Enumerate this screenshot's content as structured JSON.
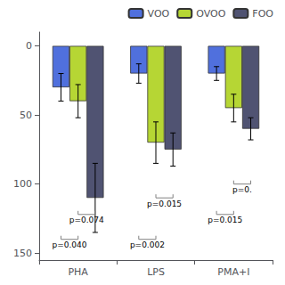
{
  "chart_data": {
    "type": "bar",
    "categories": [
      "PHA",
      "LPS",
      "PMA+I"
    ],
    "series": [
      {
        "name": "VOO",
        "values": [
          30,
          20,
          20
        ],
        "errors": [
          10,
          7,
          5
        ]
      },
      {
        "name": "OVOO",
        "values": [
          40,
          70,
          45
        ],
        "errors": [
          12,
          15,
          10
        ]
      },
      {
        "name": "FOO",
        "values": [
          110,
          75,
          60
        ],
        "errors": [
          25,
          12,
          8
        ]
      }
    ],
    "ylim": [
      155,
      -10
    ],
    "yticks": [
      0,
      50,
      100,
      150
    ],
    "grid": false,
    "legend": "upper right",
    "annotations": [
      {
        "category": "PHA",
        "between": [
          "VOO",
          "OVOO"
        ],
        "y": 140,
        "text": "p=0.040"
      },
      {
        "category": "PHA",
        "between": [
          "OVOO",
          "FOO"
        ],
        "y": 122,
        "text": "p=0.074"
      },
      {
        "category": "LPS",
        "between": [
          "VOO",
          "OVOO"
        ],
        "y": 140,
        "text": "p=0.002"
      },
      {
        "category": "LPS",
        "between": [
          "OVOO",
          "FOO"
        ],
        "y": 110,
        "text": "p=0.015"
      },
      {
        "category": "PMA+I",
        "between": [
          "VOO",
          "OVOO"
        ],
        "y": 122,
        "text": "p=0.015"
      },
      {
        "category": "PMA+I",
        "between": [
          "OVOO",
          "FOO"
        ],
        "y": 100,
        "text": "p=0."
      }
    ]
  }
}
